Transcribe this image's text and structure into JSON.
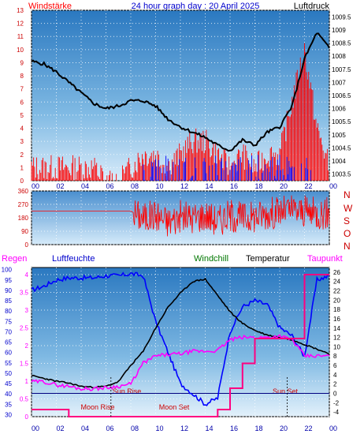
{
  "top": {
    "title_left": "Windstärke",
    "title_center": "24 hour graph day : 20 April 2025",
    "title_right": "Luftdruck",
    "wind_ticks": [
      "0",
      "1",
      "2",
      "3",
      "4",
      "5",
      "6",
      "7",
      "8",
      "9",
      "10",
      "11",
      "12",
      "13"
    ],
    "pressure_ticks": [
      "1003.5",
      "1004",
      "1004.5",
      "1005",
      "1005.5",
      "1006",
      "1006.5",
      "1007",
      "1007.5",
      "1008",
      "1008.5",
      "1009",
      "1009.5"
    ],
    "colors": {
      "wind": "#ff0000",
      "gust_blue": "#0000ff",
      "pressure": "#000000"
    }
  },
  "mid": {
    "dir_ticks": [
      "0",
      "90",
      "180",
      "270",
      "360"
    ],
    "compass": [
      "N",
      "W",
      "S",
      "O",
      "N"
    ]
  },
  "bottom": {
    "header_regen": "Regen",
    "header_luftfeuchte": "Luftfeuchte",
    "header_windchill": "Windchill",
    "header_temperatur": "Temperatur",
    "header_taupunkt": "Taupunkt",
    "rain_ticks": [
      "0",
      "0.5",
      "1",
      "1.5",
      "2",
      "2.5",
      "3",
      "3.5",
      "4"
    ],
    "humidity_ticks": [
      "30",
      "35",
      "40",
      "45",
      "50",
      "55",
      "60",
      "65",
      "70",
      "75",
      "80",
      "85",
      "90",
      "95",
      "100"
    ],
    "temp_ticks": [
      "-4",
      "-2",
      "0",
      "2",
      "4",
      "6",
      "8",
      "10",
      "12",
      "14",
      "16",
      "18",
      "20",
      "22",
      "24",
      "26"
    ],
    "sun_rise": "Sun Rise",
    "sun_set": "Sun Set",
    "moon_rise": "Moon Rise",
    "moon_set": "Moon Set",
    "colors": {
      "humidity": "#0000ff",
      "temperature": "#000000",
      "dewpoint": "#ff00ff",
      "rain": "#ff0080",
      "windchill": "#007700"
    }
  },
  "x_ticks": [
    "00",
    "02",
    "04",
    "06",
    "08",
    "10",
    "12",
    "14",
    "16",
    "18",
    "20",
    "22",
    "00"
  ],
  "chart_data": [
    {
      "type": "line",
      "title": "24 hour graph day : 20 April 2025",
      "x_hours": [
        0,
        1,
        2,
        3,
        4,
        5,
        6,
        7,
        8,
        9,
        10,
        11,
        12,
        13,
        14,
        15,
        16,
        17,
        18,
        19,
        20,
        21,
        22,
        23,
        24
      ],
      "series": [
        {
          "name": "Luftdruck",
          "axis": "right",
          "values": [
            1007.8,
            1007.7,
            1007.4,
            1007.0,
            1006.6,
            1006.2,
            1006.0,
            1006.1,
            1006.3,
            1006.3,
            1006.1,
            1005.6,
            1005.3,
            1005.1,
            1004.9,
            1004.6,
            1004.4,
            1004.8,
            1004.6,
            1005.1,
            1005.3,
            1006.1,
            1007.9,
            1008.9,
            1008.3
          ]
        },
        {
          "name": "Windstärke",
          "axis": "left",
          "values": [
            1,
            1,
            1,
            1,
            1,
            1,
            0,
            0,
            1,
            2,
            2,
            1,
            2,
            3,
            3,
            2,
            1,
            2,
            1,
            2,
            2,
            6,
            10,
            4,
            1
          ]
        }
      ],
      "ylim_left": [
        0,
        13
      ],
      "ylim_right": [
        1003.25,
        1009.75
      ]
    },
    {
      "type": "line",
      "series": [
        {
          "name": "Windrichtung",
          "values": [
            225,
            225,
            225,
            225,
            225,
            225,
            225,
            225,
            225,
            180,
            200,
            150,
            190,
            180,
            200,
            160,
            200,
            180,
            190,
            210,
            220,
            230,
            220,
            210,
            210
          ]
        }
      ],
      "ylim": [
        0,
        360
      ]
    },
    {
      "type": "line",
      "x_hours": [
        0,
        1,
        2,
        3,
        4,
        5,
        6,
        7,
        8,
        9,
        10,
        11,
        12,
        13,
        14,
        15,
        16,
        17,
        18,
        19,
        20,
        21,
        22,
        23,
        24
      ],
      "series": [
        {
          "name": "Luftfeuchte",
          "axis": "humidity",
          "values": [
            90,
            92,
            95,
            96,
            96,
            96,
            97,
            97,
            98,
            97,
            75,
            60,
            45,
            40,
            35,
            38,
            70,
            82,
            85,
            83,
            72,
            68,
            58,
            95,
            97
          ]
        },
        {
          "name": "Temperatur",
          "axis": "temp",
          "values": [
            3.8,
            3.2,
            2.6,
            2.2,
            1.5,
            1.3,
            1.5,
            2.5,
            6.0,
            9.0,
            14.0,
            18.5,
            21.5,
            24.0,
            24.5,
            21.0,
            17.5,
            15.0,
            13.5,
            12.5,
            12.0,
            11.5,
            10.5,
            9.5,
            8.5
          ]
        },
        {
          "name": "Taupunkt",
          "axis": "temp",
          "values": [
            2.5,
            2.5,
            1.8,
            1.5,
            1.0,
            1.0,
            1.2,
            1.5,
            2.0,
            6.5,
            8.0,
            8.3,
            8.5,
            9.0,
            9.0,
            9.2,
            11.5,
            12.0,
            12.0,
            12.0,
            12.3,
            11.5,
            8.0,
            8.0,
            8.0
          ]
        },
        {
          "name": "Regen",
          "axis": "rain",
          "values": [
            0.2,
            0.2,
            0.2,
            0.0,
            0.0,
            0.0,
            0.0,
            0.0,
            0.0,
            0.0,
            0.0,
            0.0,
            0.0,
            0.0,
            0.0,
            0.2,
            0.8,
            1.5,
            2.2,
            2.2,
            2.2,
            2.2,
            4.0,
            4.0,
            4.0
          ]
        }
      ],
      "ylim_rain": [
        0,
        4.2
      ],
      "ylim_humidity": [
        29,
        101
      ],
      "ylim_temp": [
        -5,
        27
      ]
    }
  ]
}
